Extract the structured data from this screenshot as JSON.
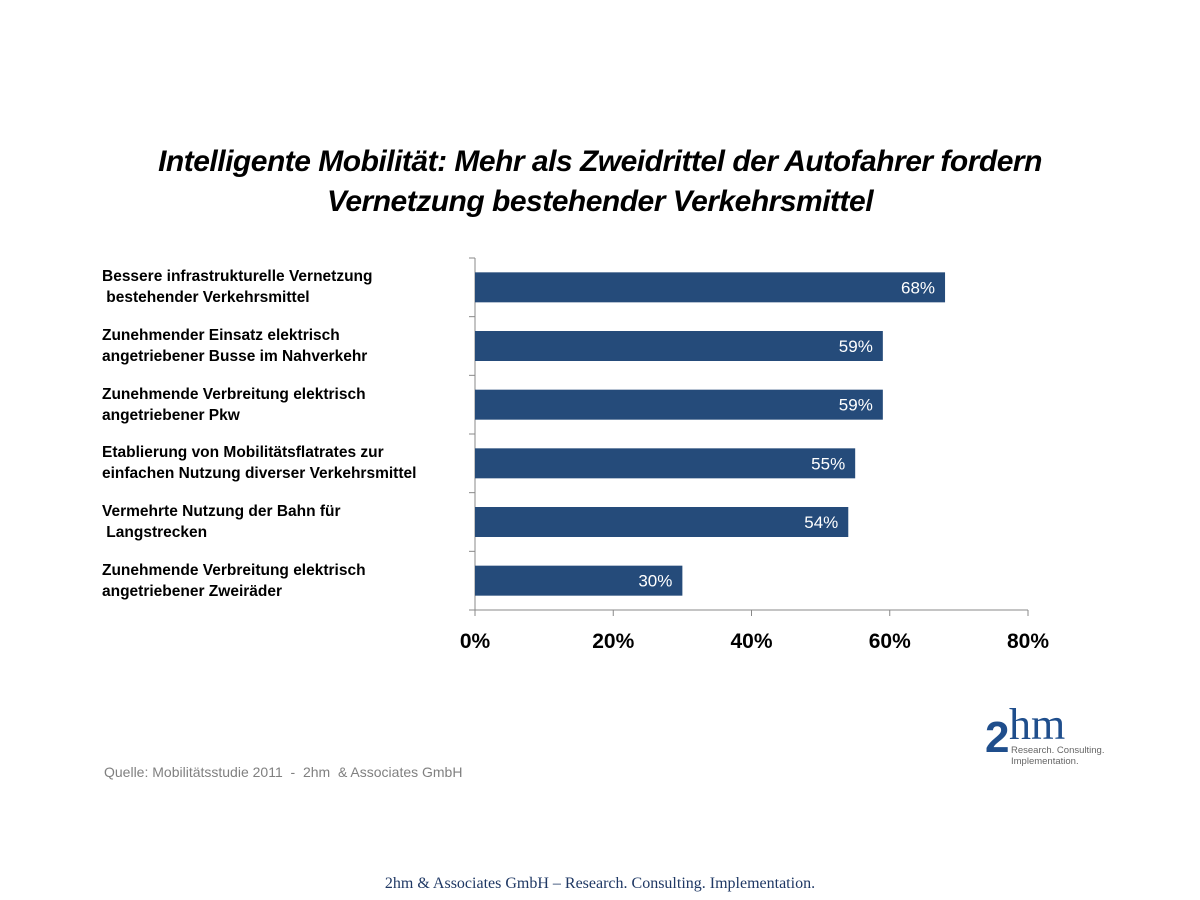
{
  "chart_data": {
    "type": "bar",
    "orientation": "horizontal",
    "title": "Intelligente Mobilität: Mehr als Zweidrittel der Autofahrer fordern\nVernetzung bestehender Verkehrsmittel",
    "categories": [
      "Bessere infrastrukturelle Vernetzung\n bestehender Verkehrsmittel",
      "Zunehmender Einsatz elektrisch\nangetriebener Busse im Nahverkehr",
      "Zunehmende Verbreitung elektrisch\nangetriebener Pkw",
      "Etablierung von Mobilitätsflatrates zur\neinfachen Nutzung diverser Verkehrsmittel",
      "Vermehrte Nutzung der Bahn für\n Langstrecken",
      "Zunehmende Verbreitung elektrisch\nangetriebener Zweiräder"
    ],
    "values": [
      68,
      59,
      59,
      55,
      54,
      30
    ],
    "data_labels": [
      "68%",
      "59%",
      "59%",
      "55%",
      "54%",
      "30%"
    ],
    "xlim": [
      0,
      80
    ],
    "x_ticks": [
      0,
      20,
      40,
      60,
      80
    ],
    "x_tick_labels": [
      "0%",
      "20%",
      "40%",
      "60%",
      "80%"
    ],
    "grid": false,
    "bar_color": "#254b7a",
    "xlabel": "",
    "ylabel": ""
  },
  "source": "Quelle: Mobilitätsstudie 2011  -  2hm  & Associates GmbH",
  "logo": {
    "text": "2hm",
    "tagline": "Research. Consulting.\nImplementation."
  },
  "footer": "2hm & Associates GmbH – Research. Consulting. Implementation."
}
